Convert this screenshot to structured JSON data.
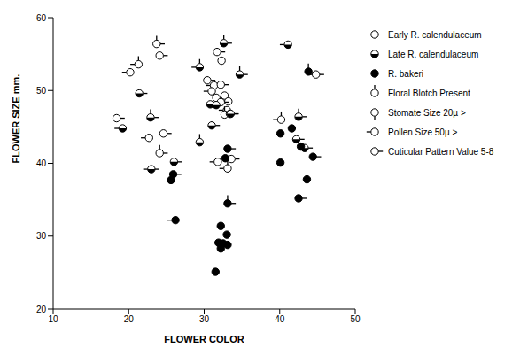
{
  "chart_data": {
    "type": "scatter",
    "xlabel": "FLOWER COLOR",
    "ylabel": "FLOWER SIZE mm.",
    "xlim": [
      10,
      50
    ],
    "xticks": [
      10,
      20,
      30,
      40,
      50
    ],
    "ylim": [
      20,
      60
    ],
    "yticks": [
      20,
      30,
      40,
      50,
      60
    ],
    "grid": false,
    "legend": "right",
    "features": [
      {
        "name": "Floral Blotch Present",
        "marker": "tick_up"
      },
      {
        "name": "Stomate Size 20µ >",
        "marker": "tick_down"
      },
      {
        "name": "Pollen Size 50µ >",
        "marker": "tick_left"
      },
      {
        "name": "Cuticular Pattern Value 5-8",
        "marker": "tick_right"
      }
    ],
    "series": [
      {
        "name": "Early R. calendulaceum",
        "marker": "open",
        "color": "#000000",
        "points": [
          {
            "x": 18.4,
            "y": 46.2,
            "features": [
              3
            ]
          },
          {
            "x": 20.2,
            "y": 52.5,
            "features": [
              2
            ]
          },
          {
            "x": 21.3,
            "y": 53.6,
            "features": [
              0,
              2
            ]
          },
          {
            "x": 23.7,
            "y": 56.4,
            "features": [
              0,
              3
            ]
          },
          {
            "x": 24.1,
            "y": 54.8,
            "features": [
              3
            ]
          },
          {
            "x": 22.7,
            "y": 43.5,
            "features": [
              2
            ]
          },
          {
            "x": 24.6,
            "y": 44.1,
            "features": [
              3
            ]
          },
          {
            "x": 24.1,
            "y": 41.4,
            "features": [
              0,
              3
            ]
          },
          {
            "x": 31.7,
            "y": 55.3,
            "features": [
              3
            ]
          },
          {
            "x": 32.3,
            "y": 54.1,
            "features": []
          },
          {
            "x": 30.4,
            "y": 51.4,
            "features": [
              3
            ]
          },
          {
            "x": 31.3,
            "y": 50.7,
            "features": [
              2
            ]
          },
          {
            "x": 32.2,
            "y": 50.8,
            "features": [
              3
            ]
          },
          {
            "x": 31.0,
            "y": 49.9,
            "features": [
              2
            ]
          },
          {
            "x": 31.6,
            "y": 49.0,
            "features": [
              3
            ]
          },
          {
            "x": 32.7,
            "y": 49.3,
            "features": []
          },
          {
            "x": 33.2,
            "y": 48.5,
            "features": [
              2
            ]
          },
          {
            "x": 32.2,
            "y": 48.4,
            "features": [
              3
            ]
          },
          {
            "x": 33.0,
            "y": 47.3,
            "features": [
              2
            ]
          },
          {
            "x": 32.7,
            "y": 46.7,
            "features": [
              0
            ]
          },
          {
            "x": 33.4,
            "y": 46.8,
            "features": [
              3
            ]
          },
          {
            "x": 31.8,
            "y": 40.2,
            "features": [
              2
            ]
          },
          {
            "x": 33.6,
            "y": 40.6,
            "features": [
              3
            ]
          },
          {
            "x": 33.1,
            "y": 39.3,
            "features": [
              0,
              2
            ]
          },
          {
            "x": 40.2,
            "y": 46.0,
            "features": [
              0,
              2
            ]
          },
          {
            "x": 44.8,
            "y": 52.2,
            "features": [
              2,
              3
            ]
          }
        ]
      },
      {
        "name": "Late R. calendulaceum",
        "marker": "half",
        "color": "#000000",
        "points": [
          {
            "x": 19.2,
            "y": 44.8,
            "features": [
              2
            ]
          },
          {
            "x": 21.4,
            "y": 49.6,
            "features": [
              3
            ]
          },
          {
            "x": 22.9,
            "y": 46.3,
            "features": [
              0,
              3
            ]
          },
          {
            "x": 23.0,
            "y": 39.2,
            "features": [
              2,
              3
            ]
          },
          {
            "x": 32.6,
            "y": 56.5,
            "features": [
              0,
              3
            ]
          },
          {
            "x": 29.4,
            "y": 53.2,
            "features": [
              0,
              2
            ]
          },
          {
            "x": 30.8,
            "y": 48.1,
            "features": []
          },
          {
            "x": 31.0,
            "y": 45.2,
            "features": [
              3
            ]
          },
          {
            "x": 29.4,
            "y": 42.9,
            "features": [
              0
            ]
          },
          {
            "x": 34.7,
            "y": 52.2,
            "features": [
              0,
              3
            ]
          },
          {
            "x": 33.5,
            "y": 46.8,
            "features": [
              3
            ]
          },
          {
            "x": 31.6,
            "y": 48.0,
            "features": [
              2
            ]
          },
          {
            "x": 26.0,
            "y": 40.2,
            "features": [
              3
            ]
          },
          {
            "x": 41.1,
            "y": 56.3,
            "features": [
              2
            ]
          },
          {
            "x": 42.5,
            "y": 46.4,
            "features": [
              0,
              3
            ]
          },
          {
            "x": 42.2,
            "y": 43.3,
            "features": [
              3
            ]
          },
          {
            "x": 43.3,
            "y": 42.1,
            "features": [
              3
            ]
          }
        ]
      },
      {
        "name": "R. bakeri",
        "marker": "filled",
        "color": "#000000",
        "points": [
          {
            "x": 25.9,
            "y": 38.5,
            "features": [
              3
            ]
          },
          {
            "x": 25.6,
            "y": 37.7,
            "features": []
          },
          {
            "x": 26.2,
            "y": 32.2,
            "features": [
              2
            ]
          },
          {
            "x": 33.1,
            "y": 42.0,
            "features": [
              3
            ]
          },
          {
            "x": 32.8,
            "y": 40.7,
            "features": []
          },
          {
            "x": 33.1,
            "y": 34.5,
            "features": [
              0,
              3
            ]
          },
          {
            "x": 32.2,
            "y": 31.4,
            "features": []
          },
          {
            "x": 33.0,
            "y": 30.2,
            "features": []
          },
          {
            "x": 32.5,
            "y": 29.0,
            "features": []
          },
          {
            "x": 31.9,
            "y": 29.1,
            "features": [
              3
            ]
          },
          {
            "x": 32.2,
            "y": 28.3,
            "features": []
          },
          {
            "x": 33.1,
            "y": 28.8,
            "features": []
          },
          {
            "x": 31.5,
            "y": 25.1,
            "features": []
          },
          {
            "x": 40.1,
            "y": 44.1,
            "features": []
          },
          {
            "x": 40.1,
            "y": 40.1,
            "features": []
          },
          {
            "x": 41.6,
            "y": 44.8,
            "features": []
          },
          {
            "x": 43.6,
            "y": 37.8,
            "features": []
          },
          {
            "x": 42.5,
            "y": 35.2,
            "features": [
              3
            ]
          },
          {
            "x": 44.4,
            "y": 40.9,
            "features": [
              3
            ]
          },
          {
            "x": 43.8,
            "y": 52.6,
            "features": [
              0
            ]
          },
          {
            "x": 42.8,
            "y": 42.3,
            "features": []
          }
        ]
      }
    ]
  }
}
